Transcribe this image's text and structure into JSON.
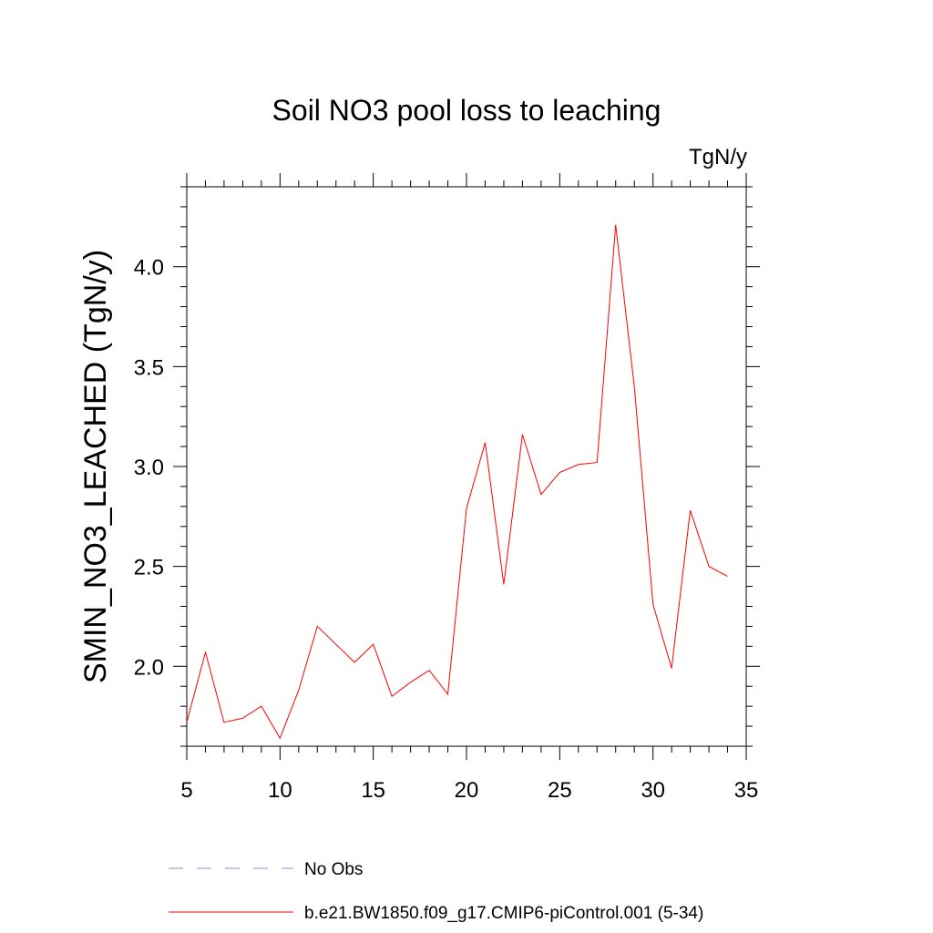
{
  "chart_data": {
    "type": "line",
    "title": "Soil NO3 pool loss to leaching",
    "units_label": "TgN/y",
    "ylabel": "SMIN_NO3_LEACHED  (TgN/y)",
    "xlabel": "",
    "xlim": [
      5,
      35
    ],
    "ylim": [
      1.6,
      4.4
    ],
    "x_ticks": [
      5,
      10,
      15,
      20,
      25,
      30,
      35
    ],
    "x_tick_labels": [
      "5",
      "10",
      "15",
      "20",
      "25",
      "30",
      "35"
    ],
    "y_ticks": [
      2.0,
      2.5,
      3.0,
      3.5,
      4.0
    ],
    "y_tick_labels": [
      "2.0",
      "2.5",
      "3.0",
      "3.5",
      "4.0"
    ],
    "grid": false,
    "legend_placement": "bottom",
    "legend": [
      {
        "label": "No Obs",
        "style": "dashed",
        "color": "#8e8ed8"
      },
      {
        "label": "b.e21.BW1850.f09_g17.CMIP6-piControl.001 (5-34)",
        "style": "solid",
        "color": "#ff0000"
      }
    ],
    "series": [
      {
        "name": "b.e21.BW1850.f09_g17.CMIP6-piControl.001 (5-34)",
        "color": "#ff0000",
        "x": [
          5,
          6,
          7,
          8,
          9,
          10,
          11,
          12,
          13,
          14,
          15,
          16,
          17,
          18,
          19,
          20,
          21,
          22,
          23,
          24,
          25,
          26,
          27,
          28,
          29,
          30,
          31,
          32,
          33,
          34
        ],
        "values": [
          1.72,
          2.07,
          1.72,
          1.74,
          1.8,
          1.64,
          1.88,
          2.2,
          2.11,
          2.02,
          2.11,
          1.85,
          1.92,
          1.98,
          1.86,
          2.79,
          3.12,
          2.41,
          3.16,
          2.86,
          2.97,
          3.01,
          3.02,
          4.21,
          3.4,
          2.31,
          1.99,
          2.78,
          2.5,
          2.45
        ]
      }
    ]
  }
}
